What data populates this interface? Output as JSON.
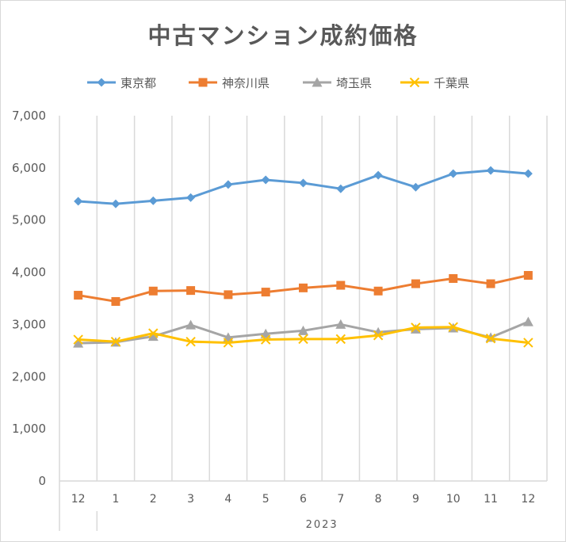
{
  "chart_data": {
    "type": "line",
    "title": "中古マンション成約価格",
    "xlabel": "",
    "ylabel": "",
    "categories": [
      "12",
      "1",
      "2",
      "3",
      "4",
      "5",
      "6",
      "7",
      "8",
      "9",
      "10",
      "11",
      "12"
    ],
    "x_group_label": "2023",
    "ylim": [
      0,
      7000
    ],
    "yticks": [
      0,
      1000,
      2000,
      3000,
      4000,
      5000,
      6000,
      7000
    ],
    "ytick_labels": [
      "0",
      "1,000",
      "2,000",
      "3,000",
      "4,000",
      "5,000",
      "6,000",
      "7,000"
    ],
    "grid": "vertical",
    "legend": "top",
    "series": [
      {
        "name": "東京都",
        "color": "#5b9bd5",
        "marker": "diamond",
        "values": [
          5360,
          5310,
          5370,
          5430,
          5680,
          5770,
          5710,
          5600,
          5860,
          5630,
          5890,
          5950,
          5890
        ]
      },
      {
        "name": "神奈川県",
        "color": "#ed7d31",
        "marker": "square",
        "values": [
          3560,
          3440,
          3640,
          3650,
          3570,
          3620,
          3700,
          3750,
          3640,
          3780,
          3880,
          3780,
          3940
        ]
      },
      {
        "name": "埼玉県",
        "color": "#a5a5a5",
        "marker": "triangle",
        "values": [
          2640,
          2660,
          2770,
          2990,
          2750,
          2820,
          2880,
          3000,
          2850,
          2910,
          2930,
          2750,
          3050
        ]
      },
      {
        "name": "千葉県",
        "color": "#ffc000",
        "marker": "x",
        "values": [
          2710,
          2670,
          2830,
          2670,
          2650,
          2710,
          2720,
          2720,
          2790,
          2940,
          2950,
          2730,
          2650
        ]
      }
    ]
  }
}
